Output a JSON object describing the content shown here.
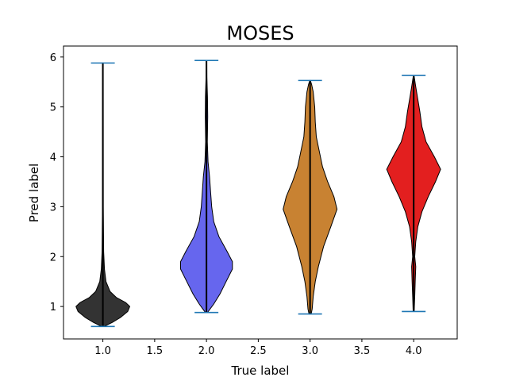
{
  "chart_data": {
    "type": "violin",
    "title": "MOSES",
    "xlabel": "True label",
    "ylabel": "Pred label",
    "xlim": [
      0.62,
      4.42
    ],
    "ylim": [
      0.35,
      6.22
    ],
    "xticks": [
      "1.0",
      "1.5",
      "2.0",
      "2.5",
      "3.0",
      "3.5",
      "4.0"
    ],
    "xtick_values": [
      1.0,
      1.5,
      2.0,
      2.5,
      3.0,
      3.5,
      4.0
    ],
    "yticks": [
      "1",
      "2",
      "3",
      "4",
      "5",
      "6"
    ],
    "ytick_values": [
      1,
      2,
      3,
      4,
      5,
      6
    ],
    "grid": false,
    "extrema_color": "#1f77b4",
    "violins": [
      {
        "x": 1.0,
        "color": "#333333",
        "min": 0.6,
        "max": 5.88,
        "profile": [
          [
            0.6,
            0.01
          ],
          [
            0.68,
            0.09
          ],
          [
            0.78,
            0.17
          ],
          [
            0.9,
            0.24
          ],
          [
            1.0,
            0.26
          ],
          [
            1.08,
            0.22
          ],
          [
            1.18,
            0.13
          ],
          [
            1.3,
            0.07
          ],
          [
            1.5,
            0.03
          ],
          [
            1.75,
            0.015
          ],
          [
            2.1,
            0.008
          ],
          [
            3.0,
            0.004
          ],
          [
            5.88,
            0.003
          ]
        ]
      },
      {
        "x": 2.0,
        "color": "#6666ee",
        "min": 0.88,
        "max": 5.93,
        "profile": [
          [
            0.88,
            0.01
          ],
          [
            1.05,
            0.07
          ],
          [
            1.25,
            0.13
          ],
          [
            1.5,
            0.19
          ],
          [
            1.75,
            0.25
          ],
          [
            1.9,
            0.25
          ],
          [
            2.1,
            0.2
          ],
          [
            2.4,
            0.12
          ],
          [
            2.7,
            0.07
          ],
          [
            3.0,
            0.05
          ],
          [
            3.3,
            0.04
          ],
          [
            3.6,
            0.03
          ],
          [
            3.9,
            0.015
          ],
          [
            4.3,
            0.008
          ],
          [
            4.8,
            0.012
          ],
          [
            5.2,
            0.01
          ],
          [
            5.6,
            0.004
          ],
          [
            5.93,
            0.003
          ]
        ]
      },
      {
        "x": 3.0,
        "color": "#c88232",
        "min": 0.85,
        "max": 5.53,
        "profile": [
          [
            0.85,
            0.01
          ],
          [
            0.95,
            0.02
          ],
          [
            1.2,
            0.03
          ],
          [
            1.5,
            0.05
          ],
          [
            1.8,
            0.08
          ],
          [
            2.2,
            0.13
          ],
          [
            2.6,
            0.2
          ],
          [
            2.95,
            0.26
          ],
          [
            3.2,
            0.23
          ],
          [
            3.5,
            0.17
          ],
          [
            3.8,
            0.12
          ],
          [
            4.1,
            0.09
          ],
          [
            4.4,
            0.06
          ],
          [
            4.7,
            0.05
          ],
          [
            5.0,
            0.045
          ],
          [
            5.3,
            0.03
          ],
          [
            5.45,
            0.015
          ],
          [
            5.53,
            0.003
          ]
        ]
      },
      {
        "x": 4.0,
        "color": "#e31f1f",
        "min": 0.9,
        "max": 5.63,
        "profile": [
          [
            0.9,
            0.005
          ],
          [
            1.2,
            0.01
          ],
          [
            1.5,
            0.015
          ],
          [
            1.8,
            0.02
          ],
          [
            2.0,
            0.01
          ],
          [
            2.3,
            0.02
          ],
          [
            2.6,
            0.04
          ],
          [
            2.9,
            0.08
          ],
          [
            3.2,
            0.14
          ],
          [
            3.5,
            0.21
          ],
          [
            3.75,
            0.26
          ],
          [
            4.0,
            0.2
          ],
          [
            4.3,
            0.12
          ],
          [
            4.6,
            0.08
          ],
          [
            4.9,
            0.06
          ],
          [
            5.15,
            0.04
          ],
          [
            5.4,
            0.02
          ],
          [
            5.63,
            0.003
          ]
        ]
      }
    ]
  }
}
